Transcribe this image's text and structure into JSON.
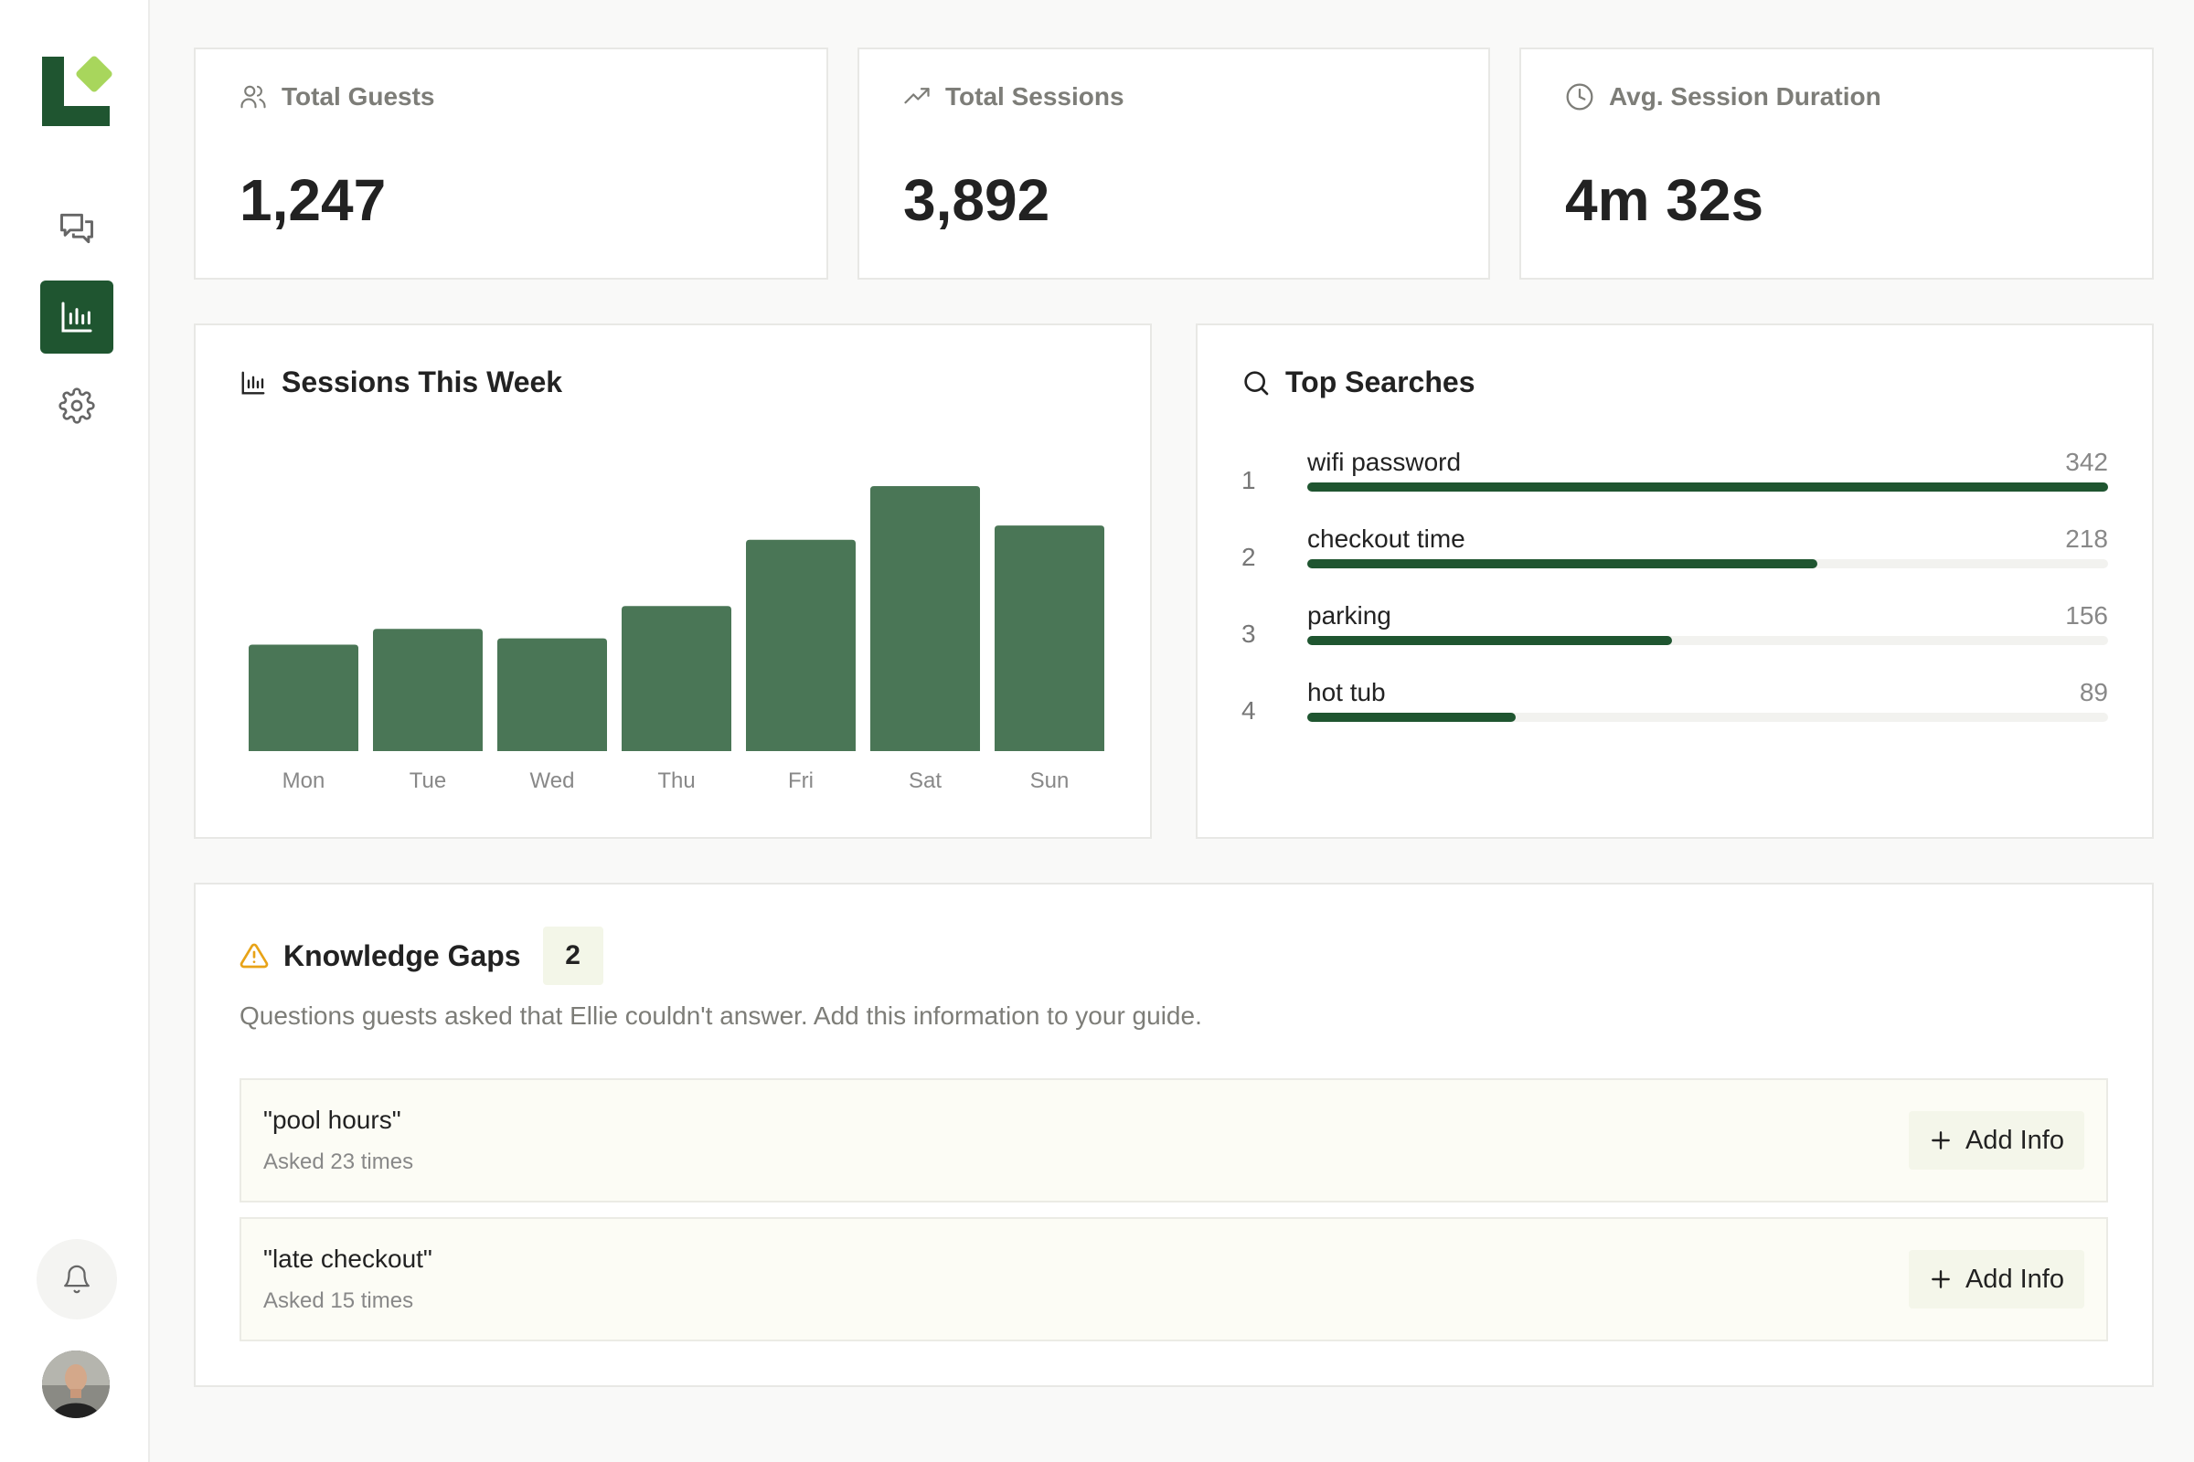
{
  "stats": [
    {
      "label": "Total Guests",
      "value": "1,247",
      "icon": "users-icon"
    },
    {
      "label": "Total Sessions",
      "value": "3,892",
      "icon": "trending-up-icon"
    },
    {
      "label": "Avg. Session Duration",
      "value": "4m 32s",
      "icon": "clock-icon"
    }
  ],
  "sessions_chart": {
    "title": "Sessions This Week"
  },
  "chart_data": {
    "type": "bar",
    "title": "Sessions This Week",
    "categories": [
      "Mon",
      "Tue",
      "Wed",
      "Thu",
      "Fri",
      "Sat",
      "Sun"
    ],
    "values": [
      135,
      155,
      143,
      184,
      268,
      336,
      286
    ],
    "color": "#4a7656"
  },
  "top_searches": {
    "title": "Top Searches",
    "items": [
      {
        "rank": "1",
        "term": "wifi password",
        "count": "342",
        "fraction": 1.0
      },
      {
        "rank": "2",
        "term": "checkout time",
        "count": "218",
        "fraction": 0.637
      },
      {
        "rank": "3",
        "term": "parking",
        "count": "156",
        "fraction": 0.456
      },
      {
        "rank": "4",
        "term": "hot tub",
        "count": "89",
        "fraction": 0.26
      }
    ]
  },
  "knowledge_gaps": {
    "title": "Knowledge Gaps",
    "count": "2",
    "description": "Questions guests asked that Ellie couldn't answer. Add this information to your guide.",
    "items": [
      {
        "question": "\"pool hours\"",
        "asked": "Asked 23 times",
        "button": "Add Info"
      },
      {
        "question": "\"late checkout\"",
        "asked": "Asked 15 times",
        "button": "Add Info"
      }
    ]
  },
  "colors": {
    "brand": "#1f5530",
    "accent": "#a8d65c",
    "bar": "#4a7656",
    "warning": "#e8a317"
  }
}
